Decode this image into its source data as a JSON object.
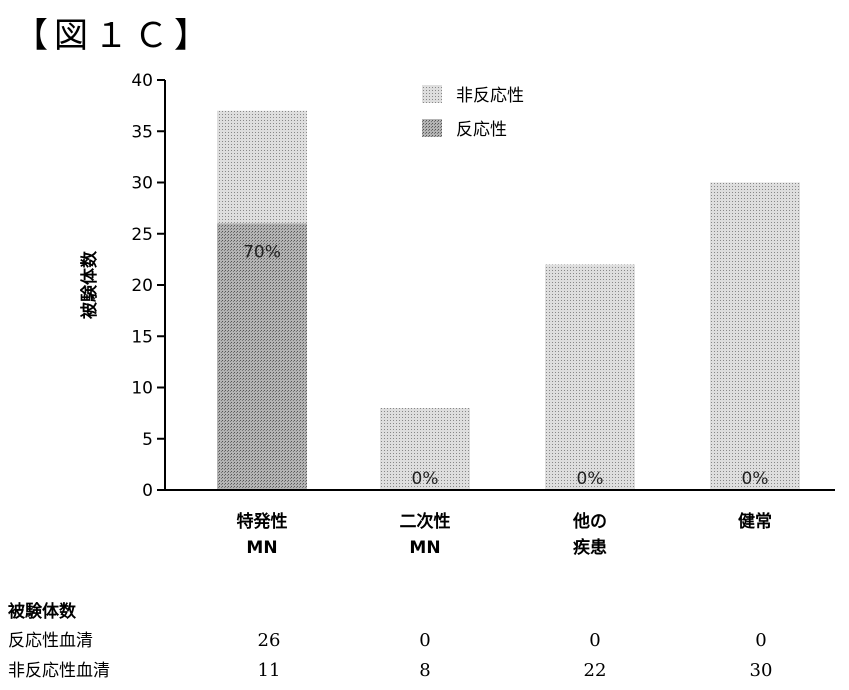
{
  "figure_title": "【図１Ｃ】",
  "chart_data": {
    "type": "bar",
    "stacked": true,
    "categories": [
      {
        "line1": "特発性",
        "line2": "MN"
      },
      {
        "line1": "二次性",
        "line2": "MN"
      },
      {
        "line1": "他の",
        "line2": "疾患"
      },
      {
        "line1": "健常",
        "line2": ""
      }
    ],
    "series": [
      {
        "name": "反応性",
        "values": [
          26,
          0,
          0,
          0
        ],
        "color": "#a8a8a8"
      },
      {
        "name": "非反応性",
        "values": [
          11,
          8,
          22,
          30
        ],
        "color": "#d4d4d4"
      }
    ],
    "bar_labels": [
      "70%",
      "0%",
      "0%",
      "0%"
    ],
    "ylabel": "被験体数",
    "ylim": [
      0,
      40
    ],
    "yticks": [
      0,
      5,
      10,
      15,
      20,
      25,
      30,
      35,
      40
    ],
    "legend": {
      "placement": "top-center",
      "order": [
        "非反応性",
        "反応性"
      ]
    },
    "grid": false
  },
  "table": {
    "title": "被験体数",
    "rows": [
      {
        "label": "反応性血清",
        "values": [
          "26",
          "0",
          "0",
          "0"
        ]
      },
      {
        "label": "非反応性血清",
        "values": [
          "11",
          "8",
          "22",
          "30"
        ]
      }
    ]
  }
}
